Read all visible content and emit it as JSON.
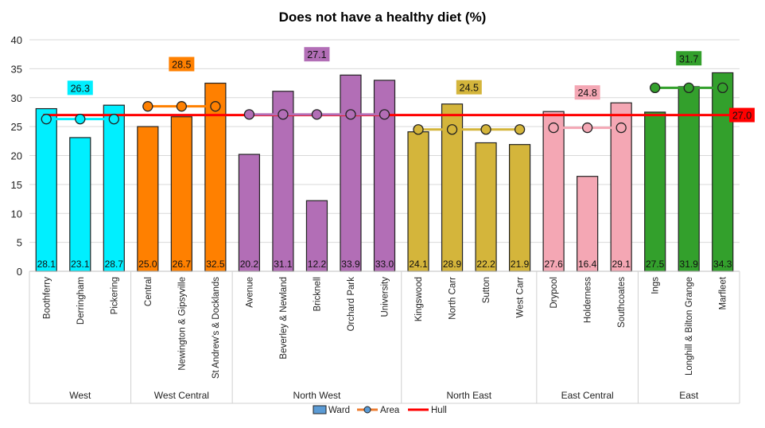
{
  "chart_data": {
    "type": "bar",
    "title": "Does not have a healthy diet (%)",
    "xlabel": "",
    "ylabel": "",
    "ylim": [
      0,
      40
    ],
    "yticks": [
      0,
      5,
      10,
      15,
      20,
      25,
      30,
      35,
      40
    ],
    "grid": true,
    "legend_position": "bottom",
    "legend": [
      "Ward",
      "Area",
      "Hull"
    ],
    "hull": {
      "name": "Hull",
      "value": 27.0,
      "label": "27.0",
      "color": "#FF0000"
    },
    "groups": [
      {
        "name": "West",
        "color": "#00EFFF",
        "area": 26.3,
        "area_label": "26.3",
        "wards": [
          "Boothferry",
          "Derringham",
          "Pickering"
        ],
        "values": [
          28.1,
          23.1,
          28.7
        ],
        "labels": [
          "28.1",
          "23.1",
          "28.7"
        ]
      },
      {
        "name": "West Central",
        "color": "#FF8000",
        "area": 28.5,
        "area_label": "28.5",
        "wards": [
          "Central",
          "Newington & Gipsyville",
          "St Andrew's & Docklands"
        ],
        "values": [
          25.0,
          26.7,
          32.5
        ],
        "labels": [
          "25.0",
          "26.7",
          "32.5"
        ]
      },
      {
        "name": "North West",
        "color": "#B26EB6",
        "area": 27.1,
        "area_label": "27.1",
        "wards": [
          "Avenue",
          "Beverley & Newland",
          "Bricknell",
          "Orchard Park",
          "University"
        ],
        "values": [
          20.2,
          31.1,
          12.2,
          33.9,
          33.0
        ],
        "labels": [
          "20.2",
          "31.1",
          "12.2",
          "33.9",
          "33.0"
        ]
      },
      {
        "name": "North East",
        "color": "#D4B53B",
        "area": 24.5,
        "area_label": "24.5",
        "wards": [
          "Kingswood",
          "North Carr",
          "Sutton",
          "West Carr"
        ],
        "values": [
          24.1,
          28.9,
          22.2,
          21.9
        ],
        "labels": [
          "24.1",
          "28.9",
          "22.2",
          "21.9"
        ]
      },
      {
        "name": "East Central",
        "color": "#F4A7B4",
        "area": 24.8,
        "area_label": "24.8",
        "wards": [
          "Drypool",
          "Holderness",
          "Southcoates"
        ],
        "values": [
          27.6,
          16.4,
          29.1
        ],
        "labels": [
          "27.6",
          "16.4",
          "29.1"
        ]
      },
      {
        "name": "East",
        "color": "#33A02C",
        "area": 31.7,
        "area_label": "31.7",
        "wards": [
          "Ings",
          "Longhill & Bilton Grange",
          "Marfleet"
        ],
        "values": [
          27.5,
          31.9,
          34.3
        ],
        "labels": [
          "27.5",
          "31.9",
          "34.3"
        ]
      }
    ]
  }
}
